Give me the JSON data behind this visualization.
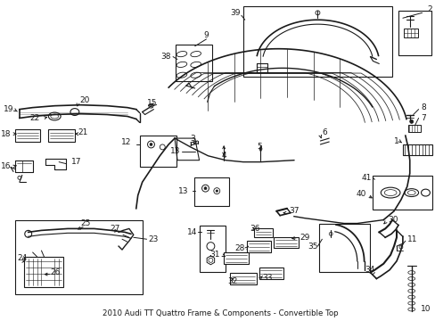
{
  "title": "2010 Audi TT Quattro Frame & Components - Convertible Top",
  "bg_color": "#ffffff",
  "line_color": "#1a1a1a",
  "text_color": "#1a1a1a",
  "fig_width": 4.89,
  "fig_height": 3.6,
  "dpi": 100
}
